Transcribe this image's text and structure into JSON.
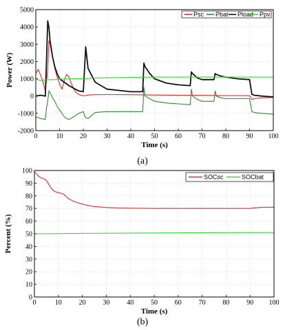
{
  "chart_data": [
    {
      "type": "line",
      "caption": "(a)",
      "xlabel": "Time (s)",
      "ylabel": "Power (W)",
      "xlim": [
        0,
        100
      ],
      "ylim": [
        -2000,
        5000
      ],
      "xticks": [
        0,
        10,
        20,
        30,
        40,
        50,
        60,
        70,
        80,
        90,
        100
      ],
      "yticks": [
        -2000,
        -1000,
        0,
        1000,
        2000,
        3000,
        4000,
        5000
      ],
      "grid": true,
      "legend_position": "top-right",
      "colors": {
        "Psc": "#e8272a",
        "Pbat": "#2e8b2e",
        "Pload": "#111111",
        "Ppv": "#33dd33"
      },
      "series": [
        {
          "name": "Psc",
          "x": [
            0,
            1,
            2,
            3,
            4,
            5,
            5.5,
            6,
            7,
            8,
            9,
            10,
            11,
            12,
            13,
            14,
            15,
            16,
            17,
            18,
            19,
            20,
            21,
            22,
            25,
            30,
            40,
            50,
            60,
            70,
            80,
            90,
            91,
            92,
            95,
            100
          ],
          "values": [
            1300,
            1550,
            1200,
            800,
            300,
            1500,
            3200,
            3000,
            2300,
            1600,
            1100,
            700,
            400,
            900,
            1250,
            1100,
            700,
            400,
            200,
            100,
            50,
            30,
            20,
            60,
            80,
            90,
            80,
            60,
            50,
            40,
            30,
            20,
            -200,
            -150,
            -100,
            -80
          ]
        },
        {
          "name": "Pbat",
          "x": [
            0,
            2,
            4,
            4.5,
            5,
            5.5,
            6,
            7,
            8,
            9,
            10,
            11,
            12,
            13,
            14,
            16,
            18,
            20,
            20.5,
            21,
            22,
            25,
            30,
            40,
            45,
            45.5,
            46,
            48,
            50,
            55,
            60,
            65,
            65.5,
            66,
            68,
            70,
            75,
            75.5,
            76,
            78,
            80,
            85,
            90,
            91,
            92,
            95,
            100
          ],
          "values": [
            -1200,
            -1300,
            -1350,
            -700,
            -300,
            300,
            200,
            -100,
            -300,
            -600,
            -800,
            -1000,
            -1200,
            -1300,
            -1350,
            -1200,
            -1000,
            -900,
            -1100,
            -1250,
            -1300,
            -950,
            -900,
            -900,
            -900,
            500,
            0,
            -150,
            -300,
            -400,
            -450,
            -500,
            400,
            0,
            -200,
            -300,
            -300,
            300,
            0,
            -100,
            -150,
            -150,
            -150,
            -900,
            -950,
            -1000,
            -1050
          ]
        },
        {
          "name": "Pload",
          "x": [
            0,
            2,
            4,
            4.5,
            5,
            5.5,
            6,
            7,
            8,
            9,
            10,
            11,
            12,
            13,
            14,
            16,
            18,
            20,
            20.5,
            21,
            22,
            25,
            30,
            40,
            45,
            45.5,
            46,
            48,
            50,
            55,
            60,
            65,
            65.5,
            66,
            68,
            70,
            75,
            75.5,
            76,
            78,
            80,
            85,
            90,
            91,
            92,
            95,
            100
          ],
          "values": [
            0,
            50,
            0,
            2000,
            4350,
            4000,
            3200,
            2300,
            1700,
            1300,
            1000,
            900,
            800,
            700,
            600,
            450,
            300,
            250,
            1500,
            2850,
            1600,
            800,
            400,
            250,
            250,
            1900,
            1700,
            1300,
            1000,
            750,
            650,
            600,
            1400,
            1300,
            1050,
            950,
            950,
            1300,
            1250,
            1150,
            1100,
            1000,
            950,
            100,
            50,
            0,
            -50
          ]
        },
        {
          "name": "Ppv",
          "x": [
            0,
            2,
            5,
            8,
            10,
            15,
            20,
            25,
            30,
            40,
            50,
            60,
            70,
            80,
            90,
            100
          ],
          "values": [
            1000,
            900,
            950,
            950,
            980,
            1000,
            1000,
            1050,
            1060,
            1080,
            1100,
            1100,
            1100,
            1100,
            1100,
            1100
          ]
        }
      ]
    },
    {
      "type": "line",
      "caption": "(b)",
      "xlabel": "Time (s)",
      "ylabel": "Percent (%)",
      "xlim": [
        0,
        100
      ],
      "ylim": [
        0,
        100
      ],
      "xticks": [
        0,
        10,
        20,
        30,
        40,
        50,
        60,
        70,
        80,
        90,
        100
      ],
      "yticks": [
        0,
        10,
        20,
        30,
        40,
        50,
        60,
        70,
        80,
        90,
        100
      ],
      "grid": true,
      "legend_position": "top-right",
      "colors": {
        "SOCsc": "#e8272a",
        "SOCbat": "#33dd33"
      },
      "series": [
        {
          "name": "SOCsc",
          "x": [
            0,
            1,
            2,
            3,
            4,
            5,
            6,
            7,
            8,
            9,
            10,
            11,
            12,
            13,
            14,
            16,
            18,
            20,
            22,
            25,
            30,
            35,
            40,
            50,
            60,
            70,
            80,
            90,
            92,
            95,
            100
          ],
          "values": [
            99,
            97,
            95,
            94,
            93.5,
            92,
            89,
            86,
            84,
            83,
            82.5,
            82,
            81.5,
            80,
            78,
            76,
            74.5,
            73.5,
            72.5,
            71.5,
            70.8,
            70.4,
            70.2,
            70,
            70,
            70,
            70,
            70,
            70.5,
            71,
            71
          ]
        },
        {
          "name": "SOCbat",
          "x": [
            0,
            20,
            40,
            60,
            80,
            100
          ],
          "values": [
            50,
            50.3,
            50.5,
            50.7,
            50.9,
            51
          ]
        }
      ]
    }
  ]
}
